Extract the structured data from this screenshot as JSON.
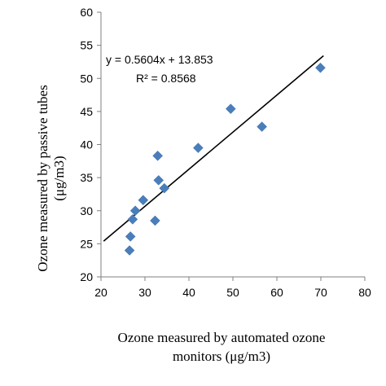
{
  "chart_data": {
    "type": "scatter",
    "xlabel_lines": [
      "Ozone measured by automated ozone",
      "monitors (μg/m3)"
    ],
    "ylabel_lines": [
      "Ozone measured by passive tubes",
      "(μg/m3)"
    ],
    "xlim": [
      20,
      80
    ],
    "ylim": [
      20,
      60
    ],
    "x_ticks": [
      20,
      30,
      40,
      50,
      60,
      70,
      80
    ],
    "y_ticks": [
      20,
      25,
      30,
      35,
      40,
      45,
      50,
      55,
      60
    ],
    "series": [
      {
        "points": [
          {
            "x": 26.5,
            "y": 24.0
          },
          {
            "x": 26.7,
            "y": 26.1
          },
          {
            "x": 27.2,
            "y": 28.7
          },
          {
            "x": 27.8,
            "y": 30.0
          },
          {
            "x": 29.6,
            "y": 31.6
          },
          {
            "x": 32.3,
            "y": 28.5
          },
          {
            "x": 32.9,
            "y": 38.3
          },
          {
            "x": 33.1,
            "y": 34.6
          },
          {
            "x": 34.4,
            "y": 33.4
          },
          {
            "x": 42.1,
            "y": 39.5
          },
          {
            "x": 49.5,
            "y": 45.4
          },
          {
            "x": 56.6,
            "y": 42.7
          },
          {
            "x": 69.9,
            "y": 51.6
          }
        ]
      }
    ],
    "trendline": {
      "slope": 0.5604,
      "intercept": 13.853,
      "x_range": [
        20.6,
        70.6
      ],
      "equation_label": "y = 0.5604x + 13.853",
      "r2_label": "R² = 0.8568"
    },
    "colors": {
      "marker": "#4a7ebb",
      "axis": "#7f7f7f",
      "trendline": "#000000"
    }
  }
}
